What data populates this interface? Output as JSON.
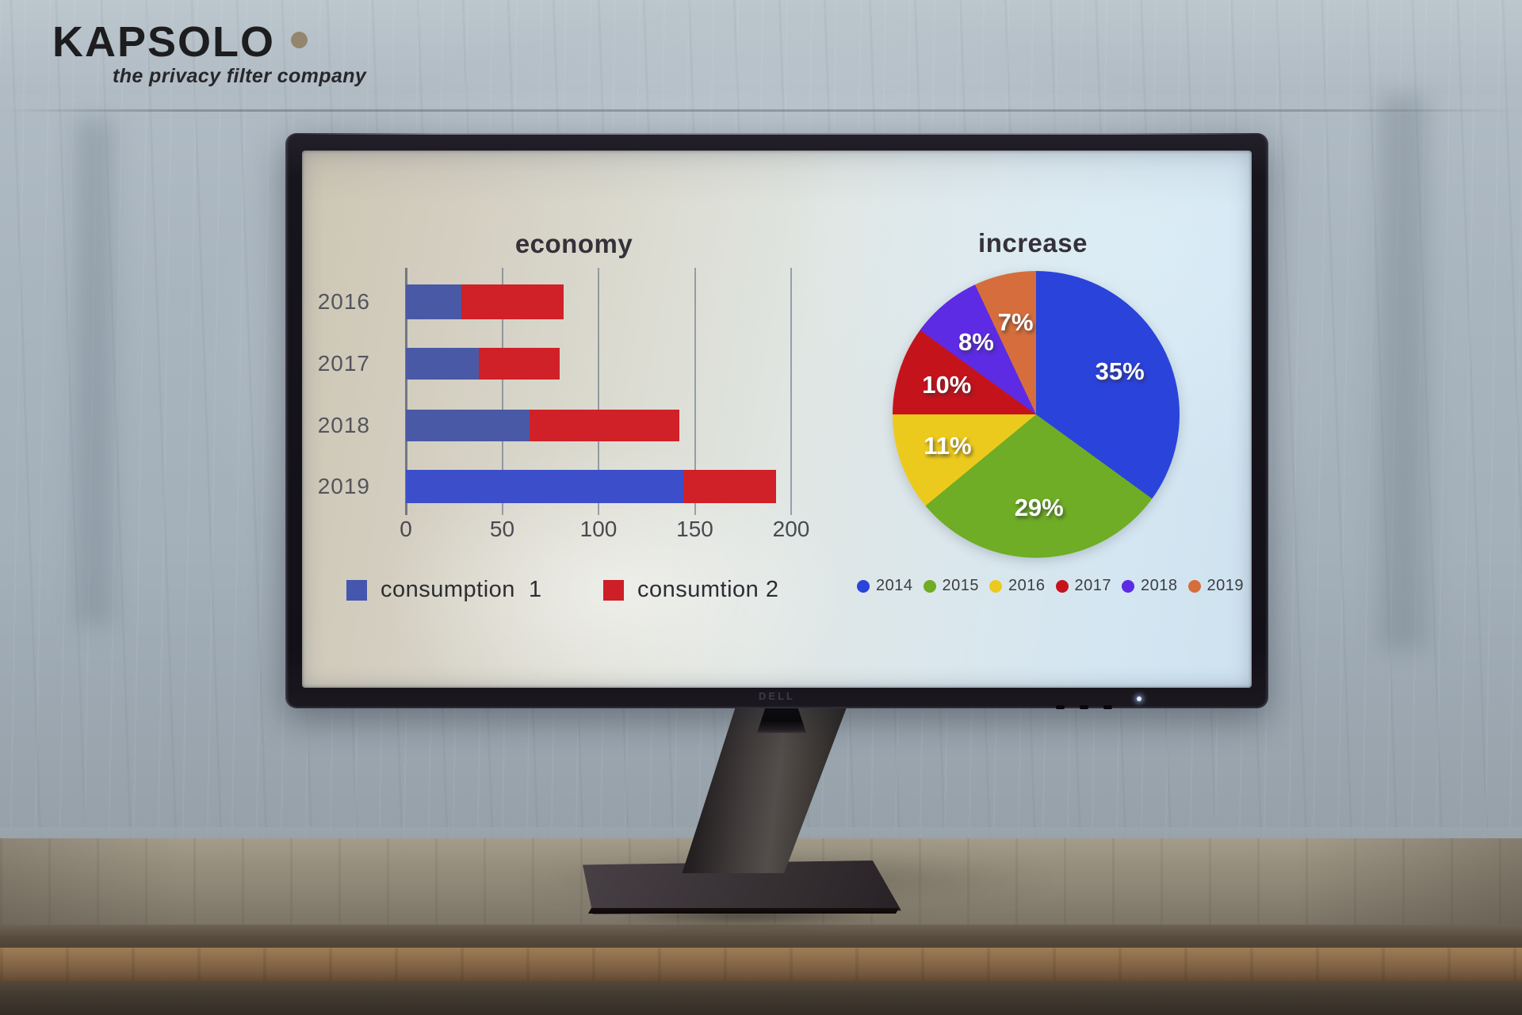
{
  "brand": {
    "logo_text": "KAPSOLO",
    "tagline": "the privacy filter company",
    "dot_color": "#93866c"
  },
  "monitor": {
    "brand_label": "DELL"
  },
  "chart_data": [
    {
      "type": "bar",
      "orientation": "horizontal",
      "stacked": true,
      "title": "economy",
      "categories": [
        "2016",
        "2017",
        "2018",
        "2019"
      ],
      "series": [
        {
          "name": "consumption  1",
          "values": [
            29,
            38,
            64,
            144
          ],
          "color": "#4a59a6",
          "color_last": "#3c4ec9",
          "legend_color": "#4456ae"
        },
        {
          "name": "consumtion 2",
          "values": [
            53,
            42,
            78,
            48
          ],
          "color": "#cf2127",
          "legend_color": "#cd1f27"
        }
      ],
      "xlim": [
        0,
        200
      ],
      "xticks": [
        0,
        50,
        100,
        150,
        200
      ],
      "grid": true,
      "legend_position": "bottom"
    },
    {
      "type": "pie",
      "title": "increase",
      "labels": [
        "2014",
        "2015",
        "2016",
        "2017",
        "2018",
        "2019"
      ],
      "values": [
        35,
        29,
        11,
        10,
        8,
        7
      ],
      "value_labels": [
        "35%",
        "29%",
        "11%",
        "10%",
        "8%",
        "7%"
      ],
      "colors": [
        "#2a43db",
        "#6ead25",
        "#ecca1d",
        "#c5131c",
        "#5d2be4",
        "#d56e3c"
      ],
      "start_angle_deg": 0,
      "direction": "clockwise",
      "legend_position": "bottom"
    }
  ]
}
